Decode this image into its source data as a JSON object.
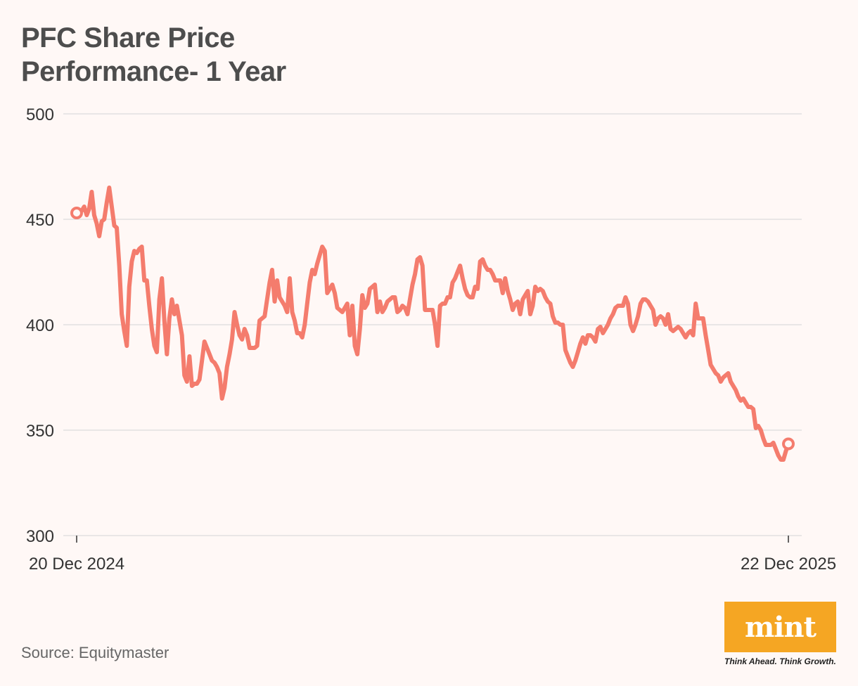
{
  "title_line1": "PFC Share Price",
  "title_line2": "Performance- 1 Year",
  "source": "Source: Equitymaster",
  "logo": {
    "text": "mint",
    "tagline": "Think Ahead. Think Growth.",
    "color": "#f5a623"
  },
  "chart_data": {
    "type": "line",
    "ylim": [
      300,
      500
    ],
    "yticks": [
      500,
      450,
      400,
      350,
      300
    ],
    "xtick_labels": [
      "20 Dec 2024",
      "22 Dec 2025"
    ],
    "line_color": "#f47c6d",
    "grid": true,
    "start": {
      "date": "20 Dec 2024",
      "value": 453
    },
    "end": {
      "date": "22 Dec 2025",
      "value": 343.5
    },
    "series": [
      {
        "values": [
          453,
          453,
          454,
          456,
          452,
          455,
          463,
          452,
          448,
          442,
          449,
          450,
          458,
          465,
          456,
          447,
          446,
          428,
          405,
          397,
          390,
          418,
          430,
          435,
          434,
          436,
          437,
          421,
          421,
          409,
          398,
          390,
          387,
          412,
          422,
          402,
          386,
          403,
          412,
          405,
          409,
          402,
          395,
          376,
          373,
          385,
          371,
          372,
          372,
          374,
          383,
          392,
          389,
          386,
          383,
          382,
          380,
          377,
          365,
          370,
          380,
          386,
          393,
          406,
          400,
          395,
          393,
          398,
          395,
          389,
          389,
          389,
          390,
          402,
          403,
          404,
          412,
          420,
          426,
          411,
          421,
          413,
          411,
          409,
          406,
          422,
          406,
          402,
          396,
          396,
          394,
          400,
          410,
          420,
          426,
          424,
          429,
          433,
          437,
          435,
          415,
          417,
          419,
          415,
          408,
          407,
          406,
          408,
          410,
          395,
          409,
          390,
          386,
          398,
          414,
          408,
          410,
          417,
          418,
          419,
          406,
          411,
          406,
          408,
          411,
          412,
          413,
          413,
          406,
          407,
          409,
          408,
          405,
          412,
          419,
          424,
          431,
          432,
          428,
          407,
          407,
          407,
          407,
          400,
          390,
          409,
          410,
          410,
          413,
          413,
          420,
          422,
          425,
          428,
          422,
          417,
          414,
          413,
          413,
          418,
          417,
          430,
          431,
          428,
          426,
          426,
          424,
          421,
          421,
          421,
          415,
          422,
          416,
          412,
          407,
          410,
          411,
          405,
          412,
          414,
          416,
          405,
          409,
          418,
          416,
          417,
          416,
          413,
          411,
          410,
          404,
          401,
          401,
          400,
          400,
          388,
          385,
          382,
          380,
          383,
          387,
          391,
          394,
          391,
          395,
          395,
          394,
          392,
          398,
          399,
          396,
          398,
          400,
          403,
          405,
          408,
          409,
          409,
          409,
          413,
          410,
          400,
          397,
          400,
          404,
          410,
          412,
          412,
          411,
          409,
          407,
          400,
          403,
          404,
          403,
          400,
          405,
          398,
          397,
          398,
          399,
          398,
          396,
          394,
          396,
          397,
          395,
          410,
          403,
          403,
          403,
          395,
          388,
          381,
          379,
          377,
          376,
          373,
          375,
          376,
          377,
          373,
          371,
          369,
          366,
          364,
          365,
          363,
          361,
          361,
          360,
          351,
          352,
          350,
          346,
          343,
          343,
          343,
          344,
          341,
          338,
          336,
          336,
          340,
          343.5
        ]
      }
    ]
  }
}
